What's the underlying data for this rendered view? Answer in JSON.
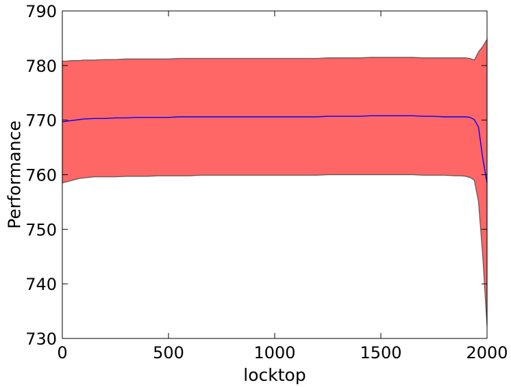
{
  "chart_data": {
    "type": "area",
    "title": "",
    "xlabel": "locktop",
    "ylabel": "Performance",
    "xlim": [
      0,
      2000
    ],
    "ylim": [
      730,
      790
    ],
    "xticks": [
      0,
      500,
      1000,
      1500,
      2000
    ],
    "yticks": [
      730,
      740,
      750,
      760,
      770,
      780,
      790
    ],
    "xtick_labels": [
      "0",
      "500",
      "1000",
      "1500",
      "2000"
    ],
    "ytick_labels": [
      "730",
      "740",
      "750",
      "760",
      "770",
      "780",
      "790"
    ],
    "grid": false,
    "legend": "none",
    "colors": {
      "band": "#ff6666",
      "band_edge": "#555555",
      "mean_line": "#0000ff"
    },
    "x": [
      0,
      20,
      40,
      60,
      80,
      100,
      150,
      200,
      250,
      300,
      350,
      400,
      450,
      500,
      550,
      600,
      650,
      700,
      750,
      800,
      850,
      900,
      950,
      1000,
      1050,
      1100,
      1150,
      1200,
      1250,
      1300,
      1350,
      1400,
      1450,
      1500,
      1550,
      1600,
      1650,
      1700,
      1750,
      1800,
      1850,
      1880,
      1900,
      1920,
      1940,
      1960,
      1980,
      2000
    ],
    "series": [
      {
        "values": [
          769.7,
          769.8,
          769.9,
          770.0,
          770.1,
          770.2,
          770.3,
          770.3,
          770.4,
          770.4,
          770.5,
          770.5,
          770.5,
          770.5,
          770.6,
          770.6,
          770.6,
          770.6,
          770.6,
          770.6,
          770.6,
          770.6,
          770.6,
          770.6,
          770.6,
          770.6,
          770.6,
          770.6,
          770.7,
          770.7,
          770.7,
          770.7,
          770.8,
          770.8,
          770.8,
          770.8,
          770.8,
          770.7,
          770.7,
          770.6,
          770.6,
          770.6,
          770.6,
          770.5,
          770.1,
          768.7,
          763.0,
          758.5
        ]
      }
    ],
    "band": {
      "upper": [
        780.8,
        780.8,
        780.9,
        780.9,
        780.9,
        781.0,
        781.0,
        781.1,
        781.1,
        781.2,
        781.2,
        781.2,
        781.2,
        781.2,
        781.3,
        781.3,
        781.3,
        781.3,
        781.3,
        781.3,
        781.3,
        781.3,
        781.3,
        781.3,
        781.3,
        781.3,
        781.3,
        781.3,
        781.4,
        781.4,
        781.4,
        781.4,
        781.5,
        781.5,
        781.5,
        781.5,
        781.5,
        781.4,
        781.4,
        781.4,
        781.4,
        781.4,
        781.4,
        781.3,
        781.0,
        782.5,
        783.5,
        784.8
      ],
      "lower": [
        758.5,
        758.7,
        758.9,
        759.1,
        759.3,
        759.4,
        759.6,
        759.6,
        759.6,
        759.7,
        759.7,
        759.7,
        759.8,
        759.8,
        759.8,
        759.8,
        759.9,
        759.9,
        759.9,
        759.9,
        759.9,
        759.9,
        759.9,
        759.9,
        759.9,
        759.9,
        759.9,
        759.9,
        760.0,
        760.0,
        760.0,
        760.0,
        760.0,
        760.0,
        760.0,
        760.0,
        760.0,
        759.9,
        759.9,
        759.9,
        759.8,
        759.8,
        759.7,
        759.5,
        759.0,
        755.0,
        745.0,
        732.3
      ]
    }
  }
}
